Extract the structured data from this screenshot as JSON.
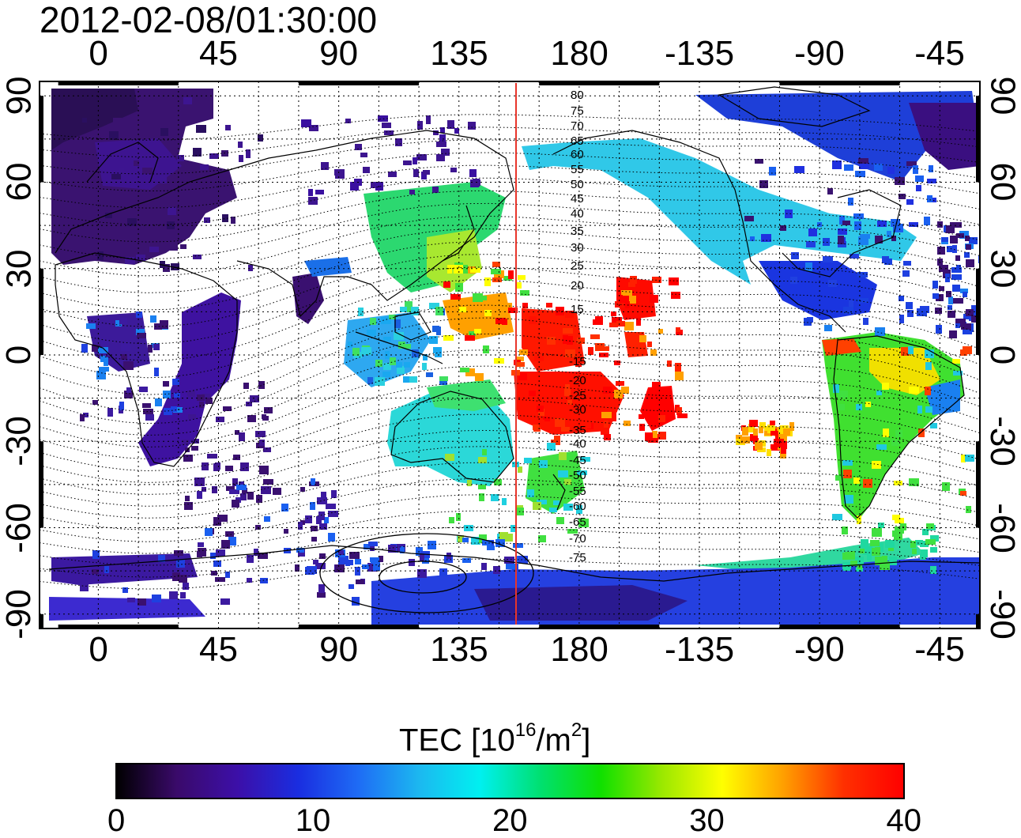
{
  "title": "2012-02-08/01:30:00",
  "map": {
    "lon_range": [
      -22,
      330
    ],
    "lat_range": [
      -95,
      95
    ],
    "top_ticks": [
      "0",
      "45",
      "90",
      "135",
      "180",
      "-135",
      "-90",
      "-45"
    ],
    "bottom_ticks": [
      "0",
      "45",
      "90",
      "135",
      "180",
      "-135",
      "-90",
      "-45"
    ],
    "left_ticks": [
      "90",
      "60",
      "30",
      "0",
      "-30",
      "-60",
      "-90"
    ],
    "right_ticks": [
      "90",
      "60",
      "30",
      "0",
      "-30",
      "-60",
      "-90"
    ],
    "grid": "dotted 15-degree",
    "marker_line_longitude": 157,
    "marker_line_color": "#e8352b",
    "contour_labels_north": [
      "80",
      "75",
      "70",
      "65",
      "60",
      "55",
      "50",
      "45",
      "40",
      "35",
      "30",
      "25",
      "20",
      "15"
    ],
    "contour_labels_south": [
      "-15",
      "-20",
      "-25",
      "-30",
      "-35",
      "-40",
      "-45",
      "-50",
      "-55",
      "-60",
      "-65",
      "-70",
      "-75"
    ]
  },
  "colorbar": {
    "label_main": "TEC  [10",
    "label_sup1": "16",
    "label_mid": "/m",
    "label_sup2": "2",
    "label_end": "]",
    "min": 0,
    "max": 40,
    "ticks": [
      "0",
      "10",
      "20",
      "30",
      "40"
    ],
    "colors": [
      "#000000",
      "#3a0a6a",
      "#3c0fa8",
      "#1a2de0",
      "#1e6cf5",
      "#1cb8f0",
      "#00f0f0",
      "#00e070",
      "#10e000",
      "#9ae800",
      "#ffff00",
      "#ffa000",
      "#ff3000",
      "#ff0000"
    ]
  },
  "tec_regions": [
    {
      "name": "north-asia-europe",
      "color": "#3b1373"
    },
    {
      "name": "north-america",
      "color": "#2bd0e0"
    },
    {
      "name": "pacific-equatorial",
      "color": "#ff0000"
    },
    {
      "name": "south-america",
      "color": "#40e040"
    },
    {
      "name": "antarctica",
      "color": "#2040e0"
    }
  ]
}
